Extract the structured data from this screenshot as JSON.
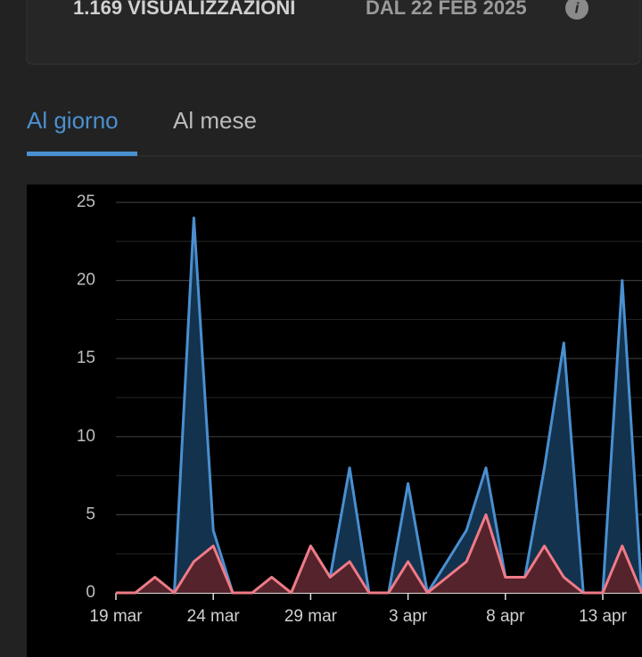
{
  "header": {
    "views": "1.169 VISUALIZZAZIONI",
    "since": "DAL 22 FEB 2025",
    "info_icon": "i"
  },
  "tabs": [
    {
      "label": "Al giorno",
      "active": true
    },
    {
      "label": "Al mese",
      "active": false
    }
  ],
  "chart_data": {
    "type": "area",
    "categories": [
      "19 mar",
      null,
      null,
      null,
      null,
      "24 mar",
      null,
      null,
      null,
      null,
      "29 mar",
      null,
      null,
      null,
      null,
      "3 apr",
      null,
      null,
      null,
      null,
      "8 apr",
      null,
      null,
      null,
      null,
      "13 apr",
      null,
      null
    ],
    "series": [
      {
        "color": "#4a8fd0",
        "fill": "#13324d",
        "values": [
          0,
          0,
          1,
          0,
          24,
          4,
          0,
          0,
          1,
          0,
          3,
          1,
          8,
          0,
          0,
          7,
          0,
          2,
          4,
          8,
          1,
          1,
          8,
          16,
          0,
          0,
          20,
          0
        ]
      },
      {
        "color": "#f07a86",
        "fill": "#54232b",
        "values": [
          0,
          0,
          1,
          0,
          2,
          3,
          0,
          0,
          1,
          0,
          3,
          1,
          2,
          0,
          0,
          2,
          0,
          1,
          2,
          5,
          1,
          1,
          3,
          1,
          0,
          0,
          3,
          0
        ]
      }
    ],
    "ylim": [
      0,
      25
    ],
    "yticks": [
      0,
      5,
      10,
      15,
      20,
      25
    ],
    "minor_yticks": [
      2.5,
      7.5,
      12.5,
      17.5,
      22.5
    ],
    "grid": true
  }
}
